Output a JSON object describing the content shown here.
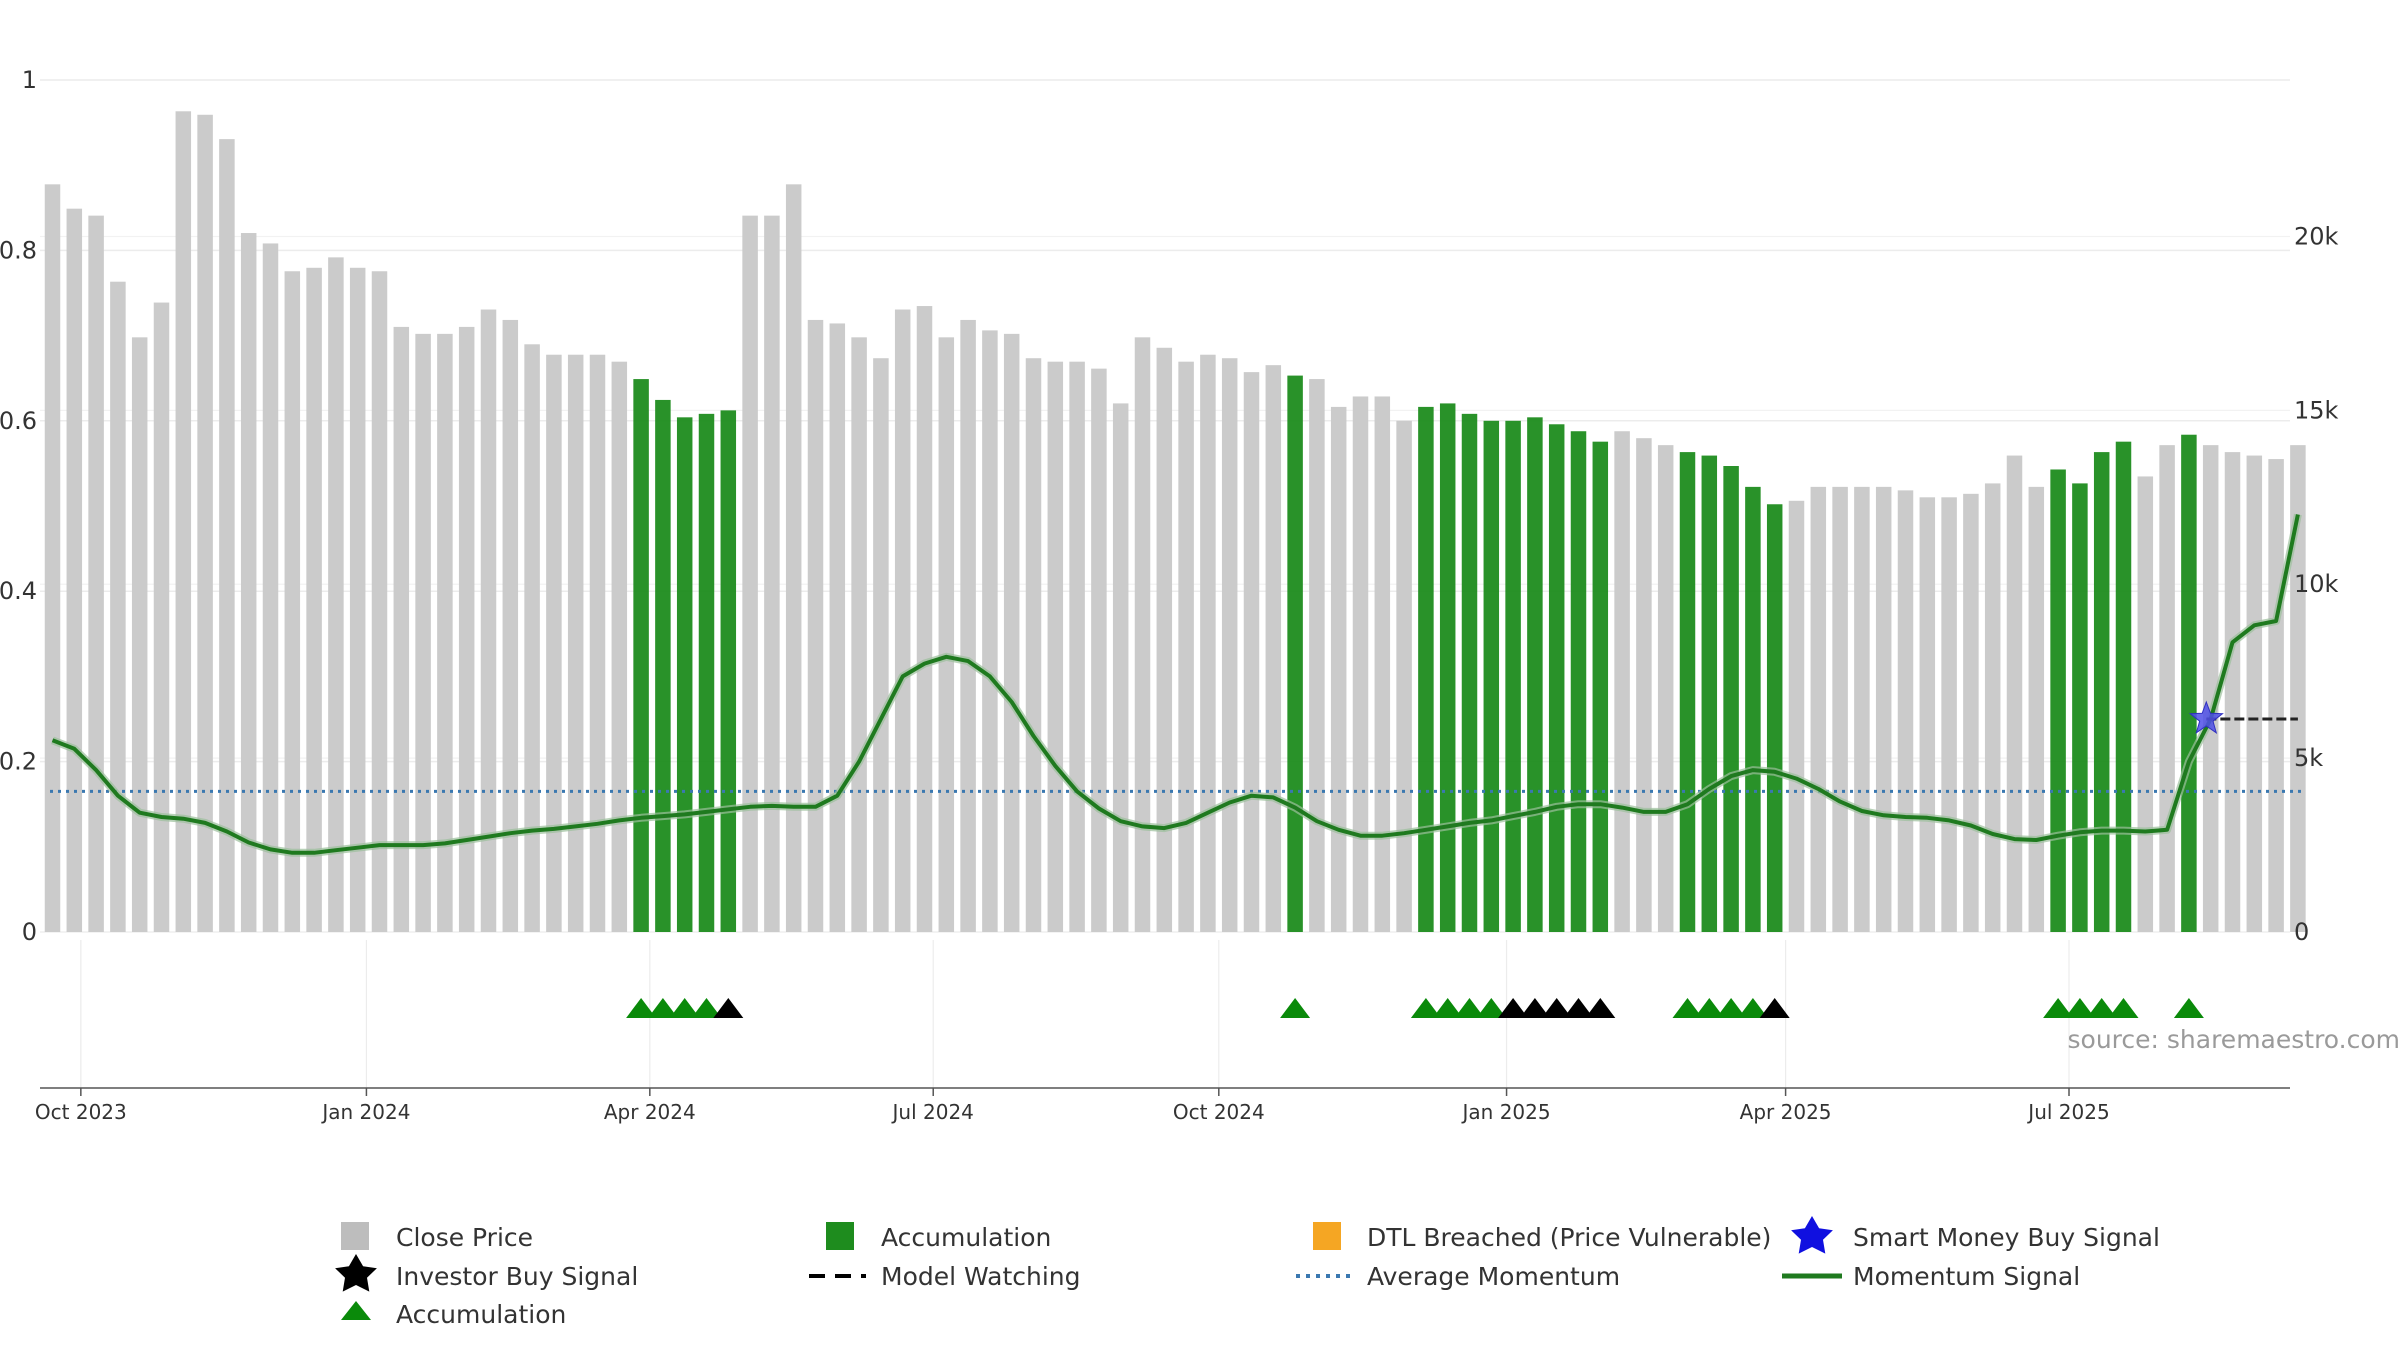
{
  "chart_data": {
    "type": "bar",
    "left_axis": {
      "ylim": [
        0,
        1
      ],
      "tick_labels": [
        "0",
        "0.2",
        "0.4",
        "0.6",
        "0.8",
        "1"
      ],
      "tick_values": [
        0,
        0.2,
        0.4,
        0.6,
        0.8,
        1
      ]
    },
    "right_axis": {
      "ylim": [
        0,
        24500
      ],
      "tick_labels": [
        "0",
        "5k",
        "10k",
        "15k",
        "20k"
      ],
      "tick_values": [
        0,
        5000,
        10000,
        15000,
        20000
      ]
    },
    "x_axis": {
      "tick_labels": [
        "Oct 2023",
        "Jan 2024",
        "Apr 2024",
        "Jul 2024",
        "Oct 2024",
        "Jan 2025",
        "Apr 2025",
        "Jul 2025"
      ],
      "tick_weeks": [
        1.3,
        14.4,
        27.4,
        40.4,
        53.5,
        66.7,
        79.5,
        92.5
      ]
    },
    "close_price": [
      21500,
      20800,
      20600,
      18700,
      17100,
      18100,
      23600,
      23500,
      22800,
      20100,
      19800,
      19000,
      19100,
      19400,
      19100,
      19000,
      17400,
      17200,
      17200,
      17400,
      17900,
      17600,
      16900,
      16600,
      16600,
      16600,
      16400,
      15900,
      15300,
      14800,
      14900,
      15000,
      20600,
      20600,
      21500,
      17600,
      17500,
      17100,
      16500,
      17900,
      18000,
      17100,
      17600,
      17300,
      17200,
      16500,
      16400,
      16400,
      16200,
      15200,
      17100,
      16800,
      16400,
      16600,
      16500,
      16100,
      16300,
      16000,
      15900,
      15100,
      15400,
      15400,
      14700,
      15100,
      15200,
      14900,
      14700,
      14700,
      14800,
      14600,
      14400,
      14100,
      14400,
      14200,
      14000,
      13800,
      13700,
      13400,
      12800,
      12300,
      12400,
      12800,
      12800,
      12800,
      12800,
      12700,
      12500,
      12500,
      12600,
      12900,
      13700,
      12800,
      13300,
      12900,
      13800,
      14100,
      13100,
      14000,
      14300,
      14000,
      13800,
      13700,
      13600,
      14000
    ],
    "accumulation_weeks": [
      27,
      28,
      29,
      30,
      31,
      57,
      63,
      64,
      65,
      66,
      67,
      68,
      69,
      70,
      71,
      75,
      76,
      77,
      78,
      79,
      92,
      93,
      94,
      95,
      98
    ],
    "momentum_signal": [
      0.225,
      0.215,
      0.19,
      0.16,
      0.14,
      0.135,
      0.133,
      0.128,
      0.118,
      0.105,
      0.097,
      0.093,
      0.093,
      0.096,
      0.099,
      0.102,
      0.102,
      0.102,
      0.104,
      0.108,
      0.112,
      0.116,
      0.119,
      0.121,
      0.124,
      0.127,
      0.131,
      0.134,
      0.136,
      0.138,
      0.141,
      0.144,
      0.147,
      0.148,
      0.147,
      0.147,
      0.16,
      0.2,
      0.25,
      0.3,
      0.315,
      0.323,
      0.318,
      0.3,
      0.27,
      0.23,
      0.195,
      0.165,
      0.145,
      0.13,
      0.124,
      0.122,
      0.128,
      0.14,
      0.152,
      0.16,
      0.158,
      0.146,
      0.13,
      0.12,
      0.113,
      0.113,
      0.116,
      0.12,
      0.124,
      0.128,
      0.131,
      0.136,
      0.141,
      0.147,
      0.15,
      0.15,
      0.146,
      0.141,
      0.141,
      0.15,
      0.168,
      0.183,
      0.19,
      0.188,
      0.18,
      0.168,
      0.153,
      0.142,
      0.137,
      0.135,
      0.134,
      0.131,
      0.125,
      0.115,
      0.109,
      0.108,
      0.113,
      0.117,
      0.119,
      0.119,
      0.118,
      0.12,
      0.2,
      0.25,
      0.34,
      0.36,
      0.365,
      0.49
    ],
    "average_momentum": 0.165,
    "model_watching": {
      "from_week": 98.8,
      "to_week": 103,
      "value": 0.25
    },
    "smart_money_buy_signal": {
      "week": 98.8,
      "value": 0.25
    },
    "accumulation_markers": [
      27,
      28,
      29,
      30,
      57,
      63,
      64,
      65,
      66,
      75,
      76,
      77,
      78,
      92,
      93,
      94,
      95,
      98
    ],
    "investor_buy_markers": [
      31,
      67,
      68,
      69,
      70,
      71,
      79
    ],
    "legend_placement": "bottom",
    "grid": true,
    "colors": {
      "close_price": "#cbcbcb",
      "accumulation": "#1e8c1e",
      "dtl_breached": "#f5a623",
      "momentum": "#1f7a1f",
      "average_momentum": "#3a78b0",
      "smart_money": "#1010e0",
      "investor_buy": "#000000",
      "accumulation_marker": "#0a8a0a"
    }
  },
  "watermark": "source: sharemaestro.com",
  "legend": {
    "close_price": "Close Price",
    "accumulation": "Accumulation",
    "dtl_breached": "DTL Breached (Price Vulnerable)",
    "smart_money": "Smart Money Buy Signal",
    "investor_buy": "Investor Buy Signal",
    "model_watching": "Model Watching",
    "average_momentum": "Average Momentum",
    "momentum_signal": "Momentum Signal",
    "accumulation_marker": "Accumulation"
  }
}
